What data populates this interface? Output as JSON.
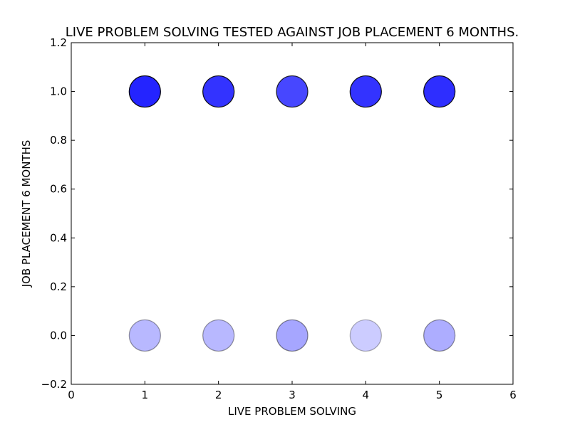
{
  "chart_data": {
    "type": "scatter",
    "title": "LIVE PROBLEM SOLVING TESTED AGAINST JOB PLACEMENT 6 MONTHS.",
    "xlabel": "LIVE PROBLEM SOLVING",
    "ylabel": "JOB PLACEMENT 6 MONTHS",
    "xlim": [
      0,
      6
    ],
    "ylim": [
      -0.2,
      1.2
    ],
    "xticks": [
      "0",
      "1",
      "2",
      "3",
      "4",
      "5",
      "6"
    ],
    "yticks": [
      "−0.2",
      "0.0",
      "0.2",
      "0.4",
      "0.6",
      "0.8",
      "1.0",
      "1.2"
    ],
    "ytick_values": [
      -0.2,
      0.0,
      0.2,
      0.4,
      0.6,
      0.8,
      1.0,
      1.2
    ],
    "grid": false,
    "marker_color": "#0000ff",
    "points": [
      {
        "x": 1,
        "y": 1,
        "alpha": 0.86
      },
      {
        "x": 2,
        "y": 1,
        "alpha": 0.8
      },
      {
        "x": 3,
        "y": 1,
        "alpha": 0.72
      },
      {
        "x": 4,
        "y": 1,
        "alpha": 0.8
      },
      {
        "x": 5,
        "y": 1,
        "alpha": 0.82
      },
      {
        "x": 1,
        "y": 0,
        "alpha": 0.28
      },
      {
        "x": 2,
        "y": 0,
        "alpha": 0.28
      },
      {
        "x": 3,
        "y": 0,
        "alpha": 0.35
      },
      {
        "x": 4,
        "y": 0,
        "alpha": 0.2
      },
      {
        "x": 5,
        "y": 0,
        "alpha": 0.32
      }
    ]
  }
}
